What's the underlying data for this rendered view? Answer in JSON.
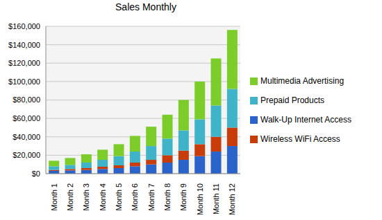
{
  "chart_data": {
    "type": "bar",
    "title": "Sales Monthly",
    "stacked": true,
    "grid": true,
    "legend": "right",
    "categories": [
      "Month 1",
      "Month 2",
      "Month 3",
      "Month 4",
      "Month 5",
      "Month 6",
      "Month 7",
      "Month 8",
      "Month 9",
      "Month 10",
      "Month 11",
      "Month 12"
    ],
    "series": [
      {
        "name": "Walk-Up Internet Access",
        "color": "#2a63c9",
        "values": [
          3000,
          3500,
          4000,
          5000,
          6000,
          8000,
          10000,
          12000,
          15000,
          19000,
          24000,
          30000
        ]
      },
      {
        "name": "Wireless WiFi Access",
        "color": "#c83c0a",
        "values": [
          1000,
          1500,
          2000,
          2500,
          3000,
          4000,
          5000,
          8000,
          10000,
          13000,
          16000,
          20000
        ]
      },
      {
        "name": "Prepaid Products",
        "color": "#3fb3c8",
        "values": [
          4000,
          4500,
          6000,
          7500,
          10000,
          12000,
          15000,
          18000,
          22000,
          27000,
          34000,
          42000
        ]
      },
      {
        "name": "Multimedia Advertising",
        "color": "#7ccd2a",
        "values": [
          6000,
          7500,
          9000,
          11000,
          13000,
          17000,
          21000,
          26000,
          33000,
          41000,
          51000,
          64000
        ]
      }
    ],
    "ylim": [
      0,
      160000
    ],
    "yticks": [
      {
        "value": 0,
        "label": "$0"
      },
      {
        "value": 20000,
        "label": "$20,000"
      },
      {
        "value": 40000,
        "label": "$40,000"
      },
      {
        "value": 60000,
        "label": "$60,000"
      },
      {
        "value": 80000,
        "label": "$80,000"
      },
      {
        "value": 100000,
        "label": "$100,000"
      },
      {
        "value": 120000,
        "label": "$120,000"
      },
      {
        "value": 140000,
        "label": "$140,000"
      },
      {
        "value": 160000,
        "label": "$160,000"
      }
    ]
  }
}
